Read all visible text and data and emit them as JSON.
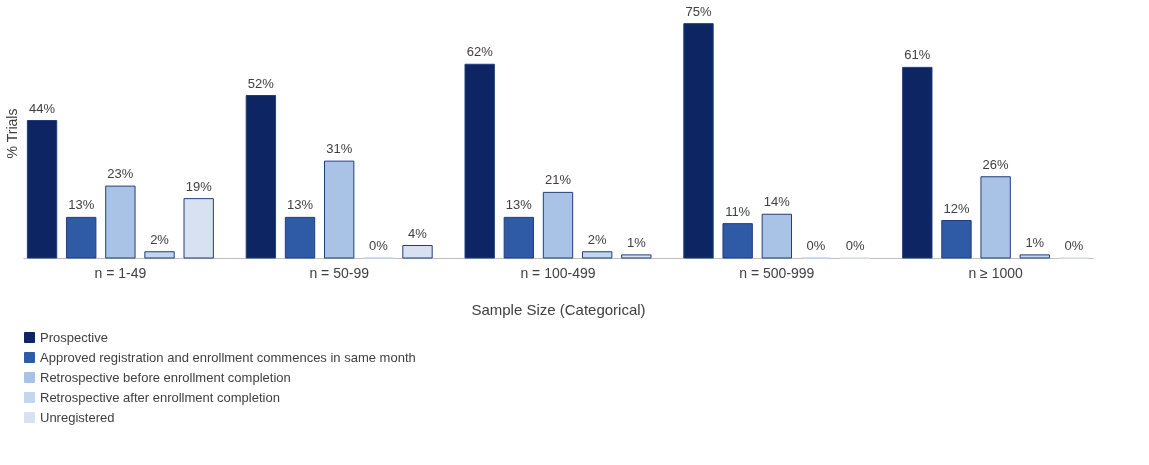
{
  "chart_data": {
    "type": "bar",
    "xlabel": "Sample Size (Categorical)",
    "ylabel": "% Trials",
    "categories": [
      "n = 1-49",
      "n = 50-99",
      "n = 100-499",
      "n = 500-999",
      "n ≥ 1000"
    ],
    "series": [
      {
        "name": "Prospective",
        "color": "#0e2563",
        "values": [
          44,
          52,
          62,
          75,
          61
        ],
        "value_labels": [
          "44%",
          "52%",
          "62%",
          "75%",
          "61%"
        ]
      },
      {
        "name": "Approved registration and enrollment commences in same month",
        "color": "#2f5ba6",
        "values": [
          13,
          13,
          13,
          11,
          12
        ],
        "value_labels": [
          "13%",
          "13%",
          "13%",
          "11%",
          "12%"
        ]
      },
      {
        "name": "Retrospective before enrollment completion",
        "color": "#a9c3e6",
        "values": [
          23,
          31,
          21,
          14,
          26
        ],
        "value_labels": [
          "23%",
          "31%",
          "21%",
          "14%",
          "26%"
        ]
      },
      {
        "name": "Retrospective after enrollment completion",
        "color": "#c3d6ef",
        "values": [
          2,
          0,
          2,
          0,
          1
        ],
        "value_labels": [
          "2%",
          "0%",
          "2%",
          "0%",
          "1%"
        ]
      },
      {
        "name": "Unregistered",
        "color": "#d8e1f2",
        "values": [
          19,
          4,
          1,
          0,
          0
        ],
        "value_labels": [
          "19%",
          "4%",
          "1%",
          "0%",
          "0%"
        ]
      }
    ],
    "legend": "bottom",
    "tick_labels": "x",
    "grid": false
  }
}
